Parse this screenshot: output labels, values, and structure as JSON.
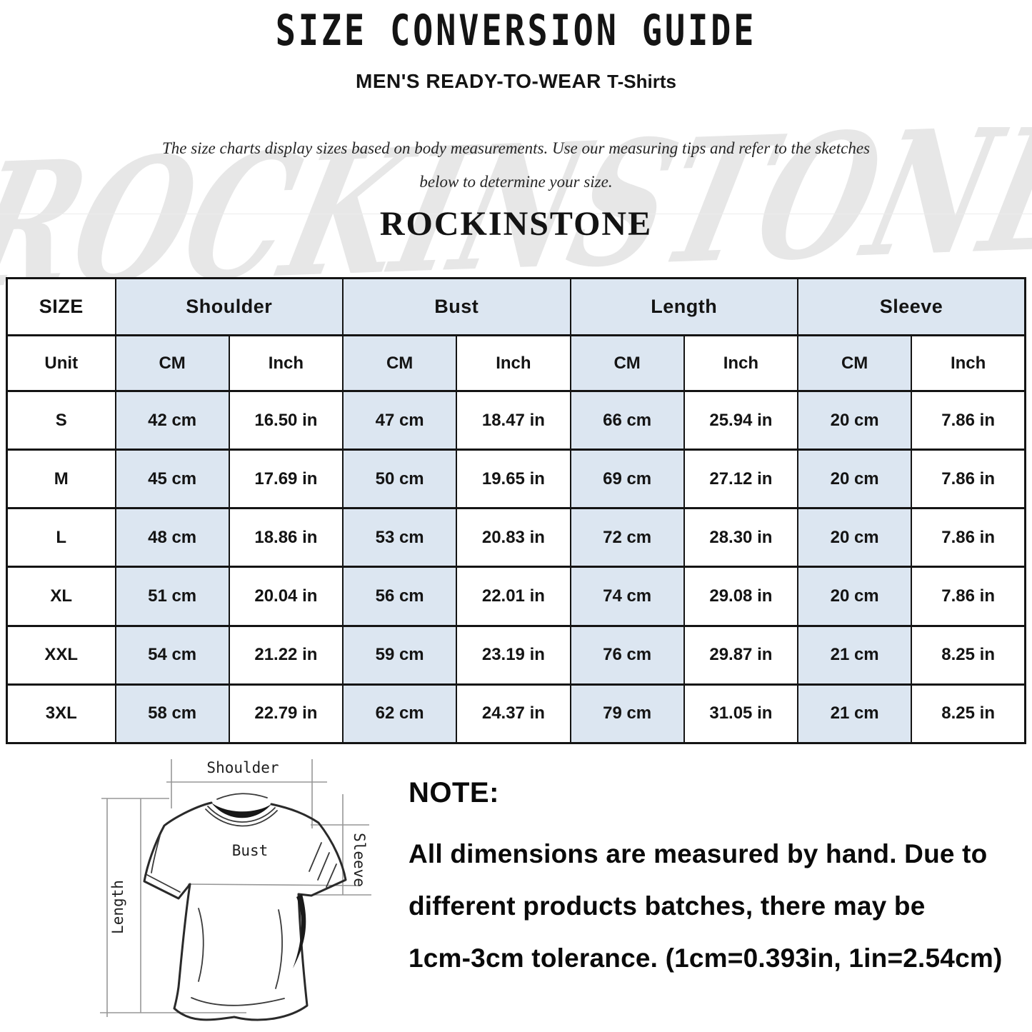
{
  "header": {
    "title": "SIZE CONVERSION GUIDE",
    "subtitle": "MEN'S READY-TO-WEAR",
    "subtitle_suffix": "T-Shirts",
    "description_line1": "The size charts display sizes based on body measurements. Use our measuring tips and refer to the sketches",
    "description_line2": "below to determine your size.",
    "brand": "ROCKINSTONE",
    "watermark": "ROCKINSTONE"
  },
  "table": {
    "corner_label": "SIZE",
    "groups": [
      "Shoulder",
      "Bust",
      "Length",
      "Sleeve"
    ],
    "unit_row": {
      "label": "Unit",
      "units": [
        "CM",
        "Inch",
        "CM",
        "Inch",
        "CM",
        "Inch",
        "CM",
        "Inch"
      ]
    },
    "rows": [
      {
        "size": "S",
        "cells": [
          "42 cm",
          "16.50 in",
          "47 cm",
          "18.47 in",
          "66 cm",
          "25.94 in",
          "20 cm",
          "7.86 in"
        ]
      },
      {
        "size": "M",
        "cells": [
          "45 cm",
          "17.69 in",
          "50 cm",
          "19.65 in",
          "69 cm",
          "27.12 in",
          "20 cm",
          "7.86 in"
        ]
      },
      {
        "size": "L",
        "cells": [
          "48 cm",
          "18.86 in",
          "53 cm",
          "20.83 in",
          "72 cm",
          "28.30 in",
          "20 cm",
          "7.86 in"
        ]
      },
      {
        "size": "XL",
        "cells": [
          "51 cm",
          "20.04 in",
          "56 cm",
          "22.01 in",
          "74 cm",
          "29.08 in",
          "20 cm",
          "7.86 in"
        ]
      },
      {
        "size": "XXL",
        "cells": [
          "54 cm",
          "21.22 in",
          "59 cm",
          "23.19 in",
          "76 cm",
          "29.87 in",
          "21 cm",
          "8.25 in"
        ]
      },
      {
        "size": "3XL",
        "cells": [
          "58 cm",
          "22.79 in",
          "62 cm",
          "24.37 in",
          "79 cm",
          "31.05 in",
          "21 cm",
          "8.25 in"
        ]
      }
    ]
  },
  "diagram": {
    "shoulder_label": "Shoulder",
    "bust_label": "Bust",
    "length_label": "Length",
    "sleeve_label": "Sleeve"
  },
  "note": {
    "heading": "NOTE:",
    "line1": "All dimensions are measured by hand. Due to",
    "line2": "different products batches, there may be",
    "line3": "1cm-3cm tolerance. (1cm=0.393in, 1in=2.54cm)"
  },
  "colors": {
    "cell_blue": "#dce6f1",
    "table_border": "#141414",
    "watermark_gray": "#e7e7e7"
  }
}
